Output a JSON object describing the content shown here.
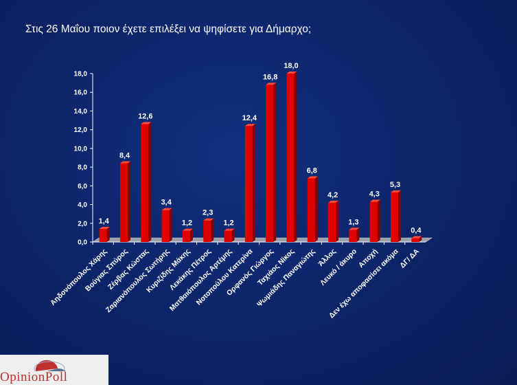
{
  "title": "Στις 26 Μαΐου ποιον έχετε επιλέξει να ψηφίσετε για Δήμαρχο;",
  "logo": {
    "text": "OpinionPoll",
    "name": "opinionpoll-logo"
  },
  "colors": {
    "background": "#0c2366",
    "bar": "#e00000",
    "bar_top": "#ff4a3a",
    "bar_side": "#8a0000",
    "text": "#ffffff"
  },
  "chart_data": {
    "type": "bar",
    "title": "",
    "xlabel": "",
    "ylabel": "",
    "ylim": [
      0,
      18
    ],
    "yticks": [
      "0,0",
      "2,0",
      "4,0",
      "6,0",
      "8,0",
      "10,0",
      "12,0",
      "14,0",
      "16,0",
      "18,0"
    ],
    "grid": false,
    "legend": "none",
    "categories": [
      "Αηδονόπουλος Χάρης",
      "Βούγιας Σπύρος",
      "Ζέρβας Κώστας",
      "Ζαριανόπουλος Σωτήρης",
      "Κυριζίδης Μάκης",
      "Λεκάκης Πέτρος",
      "Ματθαιόπουλος Αρτέμης",
      "Νοτοπούλου Κατερίνα",
      "Ορφανός Γιώργος",
      "Ταχιάος Νίκος",
      "Ψωμιάδης Παναγιώτης",
      "Άλλος",
      "Λευκό / άκυρο",
      "Αποχή",
      "Δεν έχω αποφασίσει ακόμα",
      "ΔΓ/ ΔΑ"
    ],
    "values": [
      1.4,
      8.4,
      12.6,
      3.4,
      1.2,
      2.3,
      1.2,
      12.4,
      16.8,
      18.0,
      6.8,
      4.2,
      1.3,
      4.3,
      5.3,
      0.4
    ],
    "value_labels": [
      "1,4",
      "8,4",
      "12,6",
      "3,4",
      "1,2",
      "2,3",
      "1,2",
      "12,4",
      "16,8",
      "18,0",
      "6,8",
      "4,2",
      "1,3",
      "4,3",
      "5,3",
      "0,4"
    ]
  }
}
